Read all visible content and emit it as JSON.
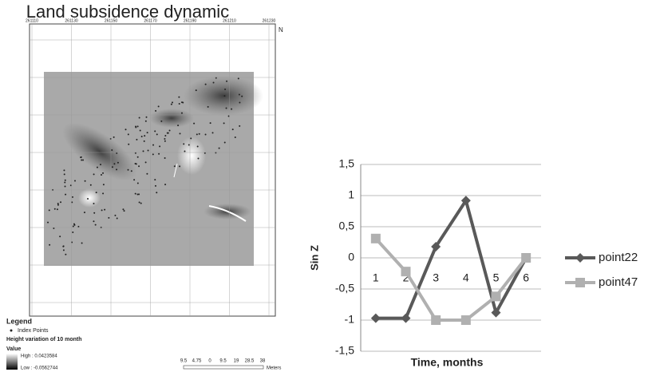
{
  "map": {
    "title": "Land subsidence dynamic",
    "north": "N",
    "x_coords": [
      "261110",
      "261130",
      "261150",
      "261170",
      "261190",
      "261210",
      "261230"
    ],
    "legend": {
      "title": "Legend",
      "points": "Index Points",
      "layer": "Height variation of 10 month",
      "value": "Value",
      "high": "High : 0.0423584",
      "low": "Low : -0.0562744"
    },
    "scale": [
      "9.5",
      "4.75",
      "0",
      "9.5",
      "19",
      "28.5",
      "38"
    ],
    "scale_unit": "Meters"
  },
  "chart_data": {
    "type": "line",
    "x_label": "Time, months",
    "y_label": "Sin Z",
    "categories": [
      "1",
      "2",
      "3",
      "4",
      "5",
      "6"
    ],
    "series": [
      {
        "name": "point22",
        "color": "#595959",
        "marker": "diamond",
        "values": [
          -0.97,
          -0.97,
          0.18,
          0.92,
          -0.88,
          0
        ]
      },
      {
        "name": "point47",
        "color": "#b0b0b0",
        "marker": "square",
        "values": [
          0.31,
          -0.22,
          -1,
          -1,
          -0.62,
          0
        ]
      }
    ],
    "ylim": [
      -1.5,
      1.5
    ],
    "yticks": [
      {
        "value": 1.5,
        "label": "1,5"
      },
      1,
      {
        "value": 0.5,
        "label": "0,5"
      },
      0,
      {
        "value": -0.5,
        "label": "-0,5"
      },
      -1,
      {
        "value": -1.5,
        "label": "-1,5"
      }
    ],
    "grid": true,
    "legend": "right"
  }
}
